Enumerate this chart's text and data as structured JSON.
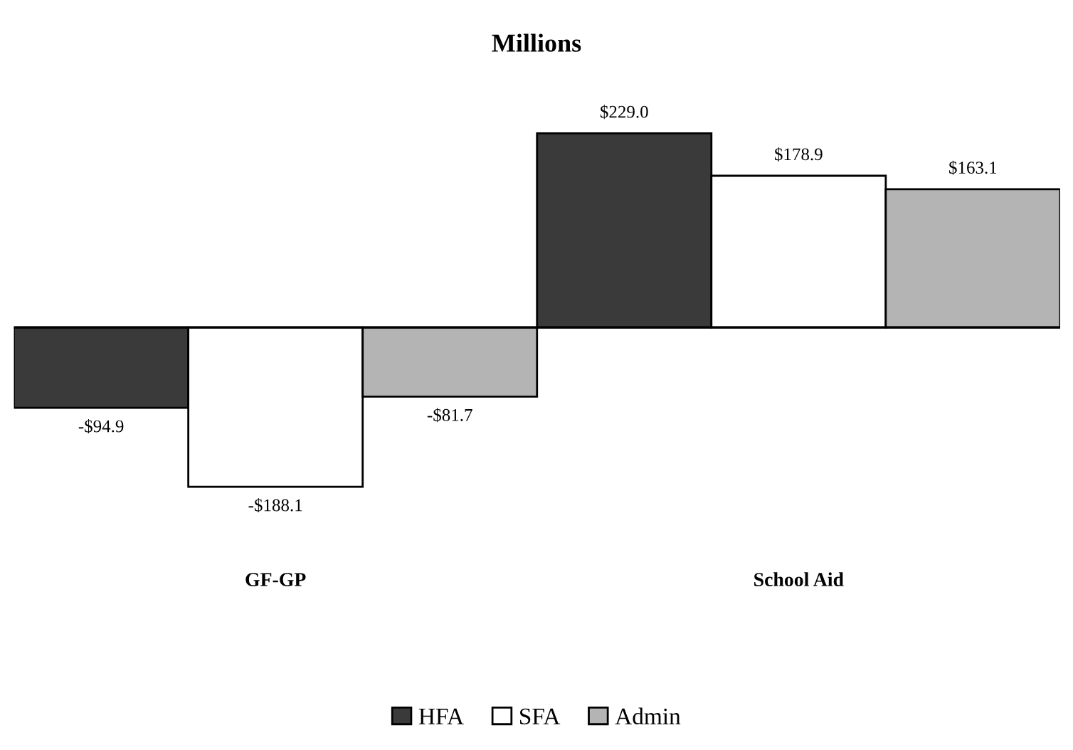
{
  "chart_data": {
    "type": "bar",
    "title": "Millions",
    "categories": [
      "GF-GP",
      "School Aid"
    ],
    "series": [
      {
        "name": "HFA",
        "color": "#3a3a3a",
        "values": [
          -94.9,
          229.0
        ],
        "value_labels": [
          "-$94.9",
          "$229.0"
        ]
      },
      {
        "name": "SFA",
        "color": "#ffffff",
        "values": [
          -188.1,
          178.9
        ],
        "value_labels": [
          "-$188.1",
          "$178.9"
        ]
      },
      {
        "name": "Admin",
        "color": "#b4b4b4",
        "values": [
          -81.7,
          163.1
        ],
        "value_labels": [
          "-$81.7",
          "$163.1"
        ]
      }
    ],
    "tick_labels": "x",
    "grid": false,
    "legend": "bottom"
  }
}
